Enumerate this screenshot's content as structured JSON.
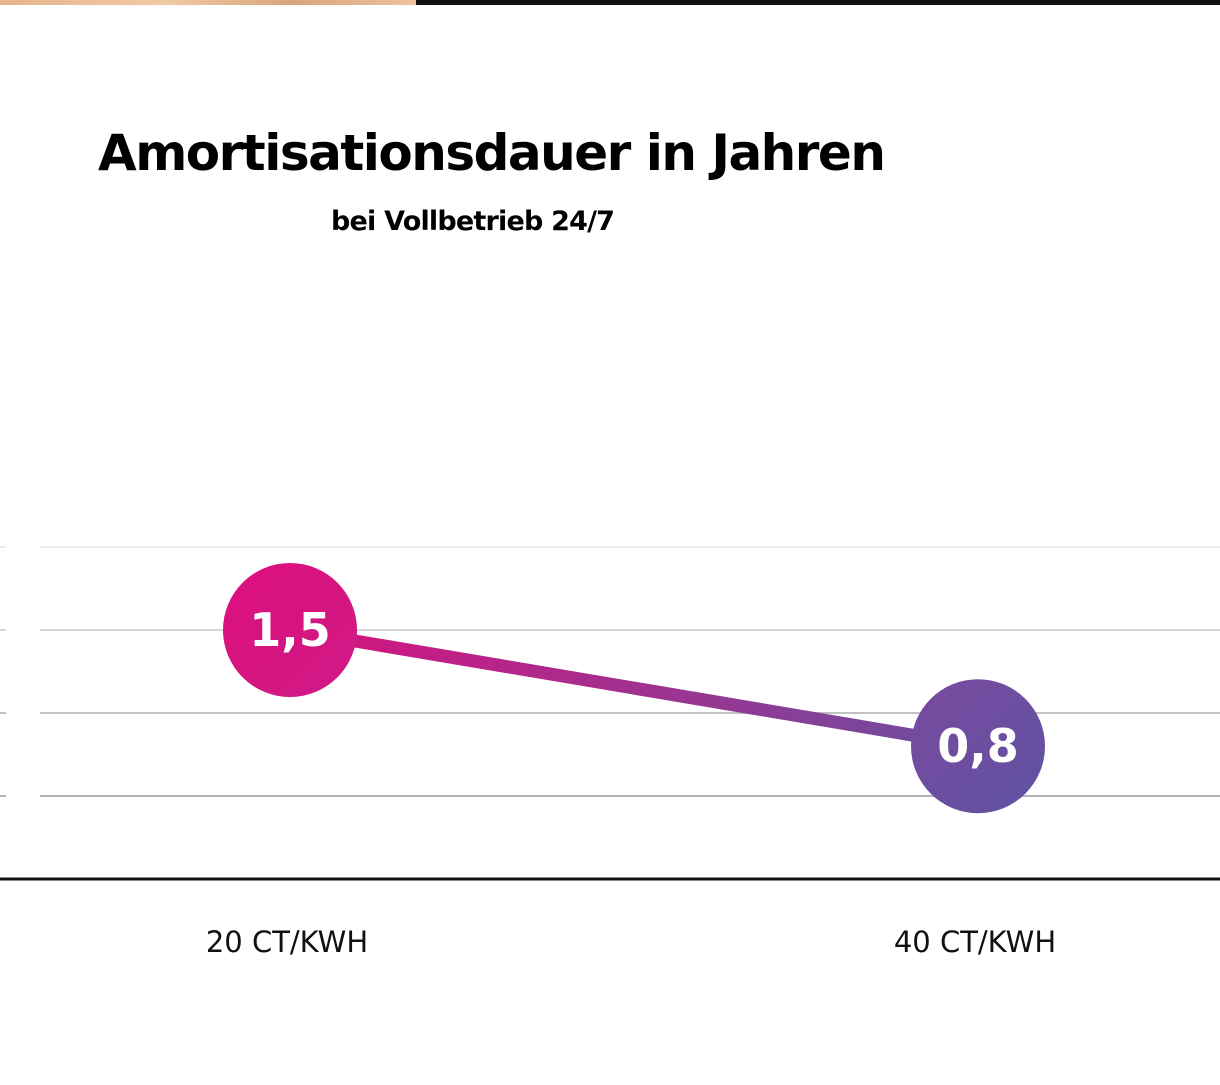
{
  "colors": {
    "start": "#d8127e",
    "end": "#6a4fa0",
    "grid": "#c8c8c8",
    "axis": "#111111"
  },
  "chart_data": {
    "type": "line",
    "title": "Amortisationsdauer in Jahren",
    "subtitle": "bei Vollbetrieb 24/7",
    "categories": [
      "20 CT/KWH",
      "40 CT/KWH"
    ],
    "values": [
      1.5,
      0.8
    ],
    "data_labels": [
      "1,5",
      "0,8"
    ],
    "ylim": [
      0,
      2.5
    ],
    "grid": true,
    "legend": "none"
  }
}
